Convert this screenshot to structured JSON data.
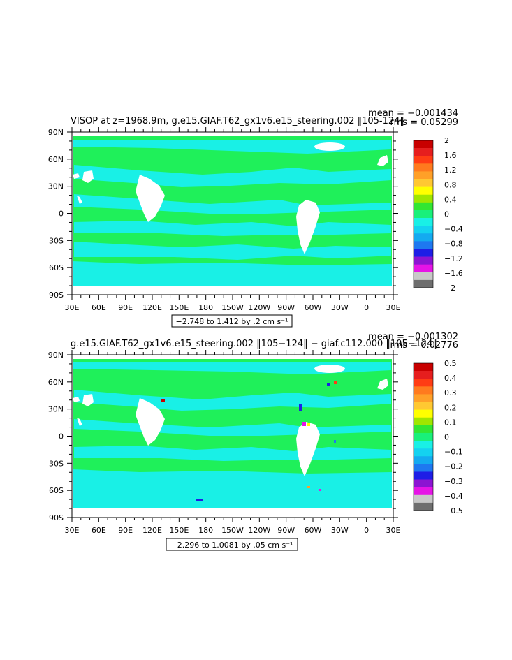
{
  "colors": {
    "land": "#ffffff",
    "ocean_zero": "#1ff05a",
    "ocean_neg": "#19f0e6",
    "axis": "#000000"
  },
  "chart_data": [
    {
      "type": "heatmap",
      "title": "VISOP at z=1968.9m, g.e15.GIAF.T62_gx1v6.e15_steering.002 ‖105-124‖",
      "stats": {
        "mean": "mean = −0.001434",
        "rms": "rms = 0.05299"
      },
      "x_ticks": [
        "30E",
        "60E",
        "90E",
        "120E",
        "150E",
        "180",
        "150W",
        "120W",
        "90W",
        "60W",
        "30W",
        "0",
        "30E"
      ],
      "y_ticks": [
        "90N",
        "60N",
        "30N",
        "0",
        "30S",
        "60S",
        "90S"
      ],
      "range_label": "−2.748 to 1.412 by .2 cm s⁻¹",
      "colorbar": {
        "labels": [
          "2",
          "1.6",
          "1.2",
          "0.8",
          "0.4",
          "0",
          "−0.4",
          "−0.8",
          "−1.2",
          "−1.6",
          "−2"
        ],
        "colors": [
          "#c80000",
          "#e61e1e",
          "#ff3c14",
          "#ff7a1e",
          "#ffa028",
          "#ffc832",
          "#ffff00",
          "#a0e600",
          "#32e632",
          "#19f07a",
          "#19f0e6",
          "#14d2f0",
          "#14aaf0",
          "#1e78f0",
          "#1e1ee6",
          "#8c14d2",
          "#e614e6",
          "#c8c8c8",
          "#6e6e6e"
        ]
      }
    },
    {
      "type": "heatmap",
      "title": "g.e15.GIAF.T62_gx1v6.e15_steering.002 ‖105−124‖ − giaf.c112.000 ‖105−124‖",
      "stats": {
        "mean": "mean = −0.001302",
        "rms": "rms = 0.02776"
      },
      "x_ticks": [
        "30E",
        "60E",
        "90E",
        "120E",
        "150E",
        "180",
        "150W",
        "120W",
        "90W",
        "60W",
        "30W",
        "0",
        "30E"
      ],
      "y_ticks": [
        "90N",
        "60N",
        "30N",
        "0",
        "30S",
        "60S",
        "90S"
      ],
      "range_label": "−2.296 to 1.0081 by .05 cm s⁻¹",
      "colorbar": {
        "labels": [
          "0.5",
          "0.4",
          "0.3",
          "0.2",
          "0.1",
          "0",
          "−0.1",
          "−0.2",
          "−0.3",
          "−0.4",
          "−0.5"
        ],
        "colors": [
          "#c80000",
          "#e61e1e",
          "#ff3c14",
          "#ff7a1e",
          "#ffa028",
          "#ffc832",
          "#ffff00",
          "#a0e600",
          "#32e632",
          "#19f07a",
          "#19f0e6",
          "#14d2f0",
          "#14aaf0",
          "#1e78f0",
          "#1e1ee6",
          "#8c14d2",
          "#e614e6",
          "#c8c8c8",
          "#6e6e6e"
        ]
      }
    }
  ]
}
